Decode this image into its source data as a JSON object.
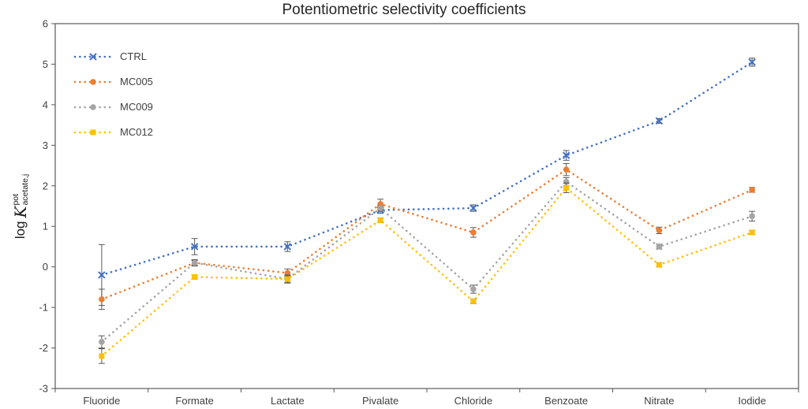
{
  "chart_data": {
    "type": "line",
    "title": "Potentiometric selectivity coefficients",
    "ylabel_parts": {
      "prefix": "log",
      "symbol": "K",
      "sup": "pot",
      "sub": "acetate,j"
    },
    "categories": [
      "Fluoride",
      "Formate",
      "Lactate",
      "Pivalate",
      "Chloride",
      "Benzoate",
      "Nitrate",
      "Iodide"
    ],
    "ylim": [
      -3,
      6
    ],
    "ytick_step": 1,
    "grid": false,
    "legend_position": "top-left-inside",
    "line_style": "dotted",
    "axis_color": "#595959",
    "error_bar_color": "#595959",
    "series": [
      {
        "name": "CTRL",
        "color": "#4472C4",
        "marker": "x",
        "values": [
          -0.2,
          0.5,
          0.5,
          1.4,
          1.45,
          2.75,
          3.6,
          5.05
        ],
        "errors": [
          0.75,
          0.2,
          0.12,
          0.08,
          0.08,
          0.12,
          0.06,
          0.1
        ]
      },
      {
        "name": "MC005",
        "color": "#ED7D31",
        "marker": "circle",
        "values": [
          -0.8,
          0.1,
          -0.15,
          1.55,
          0.85,
          2.4,
          0.9,
          1.9
        ],
        "errors": [
          0.25,
          0.08,
          0.1,
          0.12,
          0.12,
          0.15,
          0.08,
          0.06
        ]
      },
      {
        "name": "MC009",
        "color": "#A5A5A5",
        "marker": "circle",
        "values": [
          -1.85,
          0.1,
          -0.3,
          1.45,
          -0.55,
          2.1,
          0.5,
          1.25
        ],
        "errors": [
          0.15,
          0.06,
          0.08,
          0.06,
          0.1,
          0.1,
          0.06,
          0.12
        ]
      },
      {
        "name": "MC012",
        "color": "#FFC000",
        "marker": "square",
        "values": [
          -2.2,
          -0.25,
          -0.3,
          1.15,
          -0.85,
          1.95,
          0.05,
          0.85
        ],
        "errors": [
          0.18,
          0.05,
          0.1,
          0.06,
          0.06,
          0.12,
          0.05,
          0.05
        ]
      }
    ]
  }
}
